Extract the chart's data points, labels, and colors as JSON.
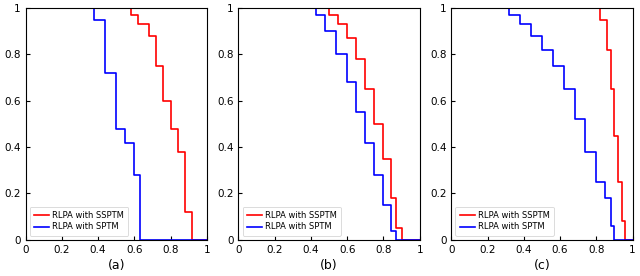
{
  "panels": [
    {
      "label": "(a)",
      "red": {
        "x": [
          0,
          0.58,
          0.58,
          0.62,
          0.62,
          0.68,
          0.68,
          0.72,
          0.72,
          0.76,
          0.76,
          0.8,
          0.8,
          0.84,
          0.84,
          0.88,
          0.88,
          0.92,
          0.92,
          1.0
        ],
        "y": [
          1.0,
          1.0,
          0.97,
          0.97,
          0.93,
          0.93,
          0.88,
          0.88,
          0.75,
          0.75,
          0.6,
          0.6,
          0.48,
          0.48,
          0.38,
          0.38,
          0.12,
          0.12,
          0.0,
          0.0
        ]
      },
      "blue": {
        "x": [
          0,
          0.38,
          0.38,
          0.44,
          0.44,
          0.5,
          0.5,
          0.55,
          0.55,
          0.6,
          0.6,
          0.63,
          0.63,
          1.0
        ],
        "y": [
          1.0,
          1.0,
          0.95,
          0.95,
          0.72,
          0.72,
          0.48,
          0.48,
          0.42,
          0.42,
          0.28,
          0.28,
          0.0,
          0.0
        ]
      }
    },
    {
      "label": "(b)",
      "red": {
        "x": [
          0,
          0.5,
          0.5,
          0.55,
          0.55,
          0.6,
          0.6,
          0.65,
          0.65,
          0.7,
          0.7,
          0.75,
          0.75,
          0.8,
          0.8,
          0.84,
          0.84,
          0.87,
          0.87,
          0.9,
          0.9,
          1.0
        ],
        "y": [
          1.0,
          1.0,
          0.97,
          0.97,
          0.93,
          0.93,
          0.87,
          0.87,
          0.78,
          0.78,
          0.65,
          0.65,
          0.5,
          0.5,
          0.35,
          0.35,
          0.18,
          0.18,
          0.05,
          0.05,
          0.0,
          0.0
        ]
      },
      "blue": {
        "x": [
          0,
          0.43,
          0.43,
          0.48,
          0.48,
          0.54,
          0.54,
          0.6,
          0.6,
          0.65,
          0.65,
          0.7,
          0.7,
          0.75,
          0.75,
          0.8,
          0.8,
          0.84,
          0.84,
          0.87,
          0.87,
          1.0
        ],
        "y": [
          1.0,
          1.0,
          0.97,
          0.97,
          0.9,
          0.9,
          0.8,
          0.8,
          0.68,
          0.68,
          0.55,
          0.55,
          0.42,
          0.42,
          0.28,
          0.28,
          0.15,
          0.15,
          0.04,
          0.04,
          0.0,
          0.0
        ]
      }
    },
    {
      "label": "(c)",
      "red": {
        "x": [
          0,
          0.82,
          0.82,
          0.86,
          0.86,
          0.88,
          0.88,
          0.9,
          0.9,
          0.92,
          0.92,
          0.94,
          0.94,
          0.96,
          0.96,
          1.0
        ],
        "y": [
          1.0,
          1.0,
          0.95,
          0.95,
          0.82,
          0.82,
          0.65,
          0.65,
          0.45,
          0.45,
          0.25,
          0.25,
          0.08,
          0.08,
          0.0,
          0.0
        ]
      },
      "blue": {
        "x": [
          0,
          0.32,
          0.32,
          0.38,
          0.38,
          0.44,
          0.44,
          0.5,
          0.5,
          0.56,
          0.56,
          0.62,
          0.62,
          0.68,
          0.68,
          0.74,
          0.74,
          0.8,
          0.8,
          0.85,
          0.85,
          0.88,
          0.88,
          0.9,
          0.9,
          1.0
        ],
        "y": [
          1.0,
          1.0,
          0.97,
          0.97,
          0.93,
          0.93,
          0.88,
          0.88,
          0.82,
          0.82,
          0.75,
          0.75,
          0.65,
          0.65,
          0.52,
          0.52,
          0.38,
          0.38,
          0.25,
          0.25,
          0.18,
          0.18,
          0.06,
          0.06,
          0.0,
          0.0
        ]
      }
    }
  ],
  "red_color": "#FF0000",
  "blue_color": "#0000FF",
  "legend_labels": [
    "RLPA with SSPTM",
    "RLPA with SPTM"
  ],
  "xlim": [
    0,
    1
  ],
  "ylim": [
    0,
    1
  ],
  "xticks": [
    0,
    0.2,
    0.4,
    0.6,
    0.8,
    1
  ],
  "yticks": [
    0,
    0.2,
    0.4,
    0.6,
    0.8,
    1
  ],
  "linewidth": 1.2,
  "figsize": [
    6.4,
    2.76
  ],
  "dpi": 100
}
